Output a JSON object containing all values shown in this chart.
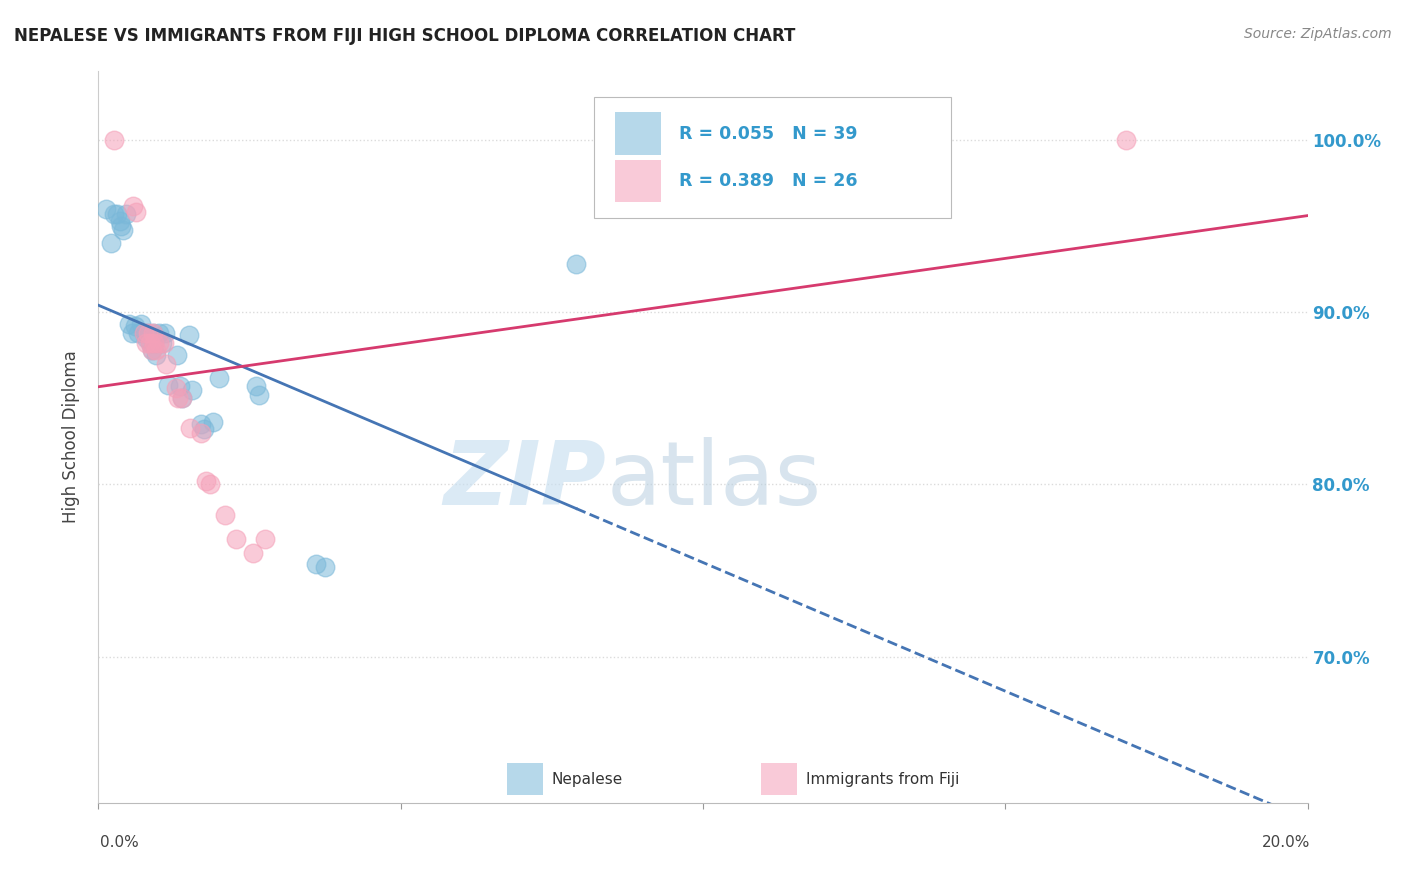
{
  "title": "NEPALESE VS IMMIGRANTS FROM FIJI HIGH SCHOOL DIPLOMA CORRELATION CHART",
  "source": "Source: ZipAtlas.com",
  "ylabel": "High School Diploma",
  "legend_label_blue": "Nepalese",
  "legend_label_pink": "Immigrants from Fiji",
  "R_blue": 0.055,
  "N_blue": 39,
  "R_pink": 0.389,
  "N_pink": 26,
  "xlim": [
    0.0,
    0.2
  ],
  "ylim": [
    0.615,
    1.04
  ],
  "yticks": [
    0.7,
    0.8,
    0.9,
    1.0
  ],
  "right_ytick_labels": [
    "70.0%",
    "80.0%",
    "90.0%",
    "100.0%"
  ],
  "background_color": "#ffffff",
  "blue_color": "#7ab8d9",
  "pink_color": "#f5a0b8",
  "blue_line_color": "#4575b4",
  "pink_line_color": "#d63a6e",
  "watermark_zip": "ZIP",
  "watermark_atlas": "atlas",
  "blue_points": [
    [
      0.0012,
      0.96
    ],
    [
      0.002,
      0.94
    ],
    [
      0.0025,
      0.957
    ],
    [
      0.003,
      0.957
    ],
    [
      0.0035,
      0.953
    ],
    [
      0.0038,
      0.95
    ],
    [
      0.004,
      0.948
    ],
    [
      0.0045,
      0.957
    ],
    [
      0.005,
      0.893
    ],
    [
      0.0055,
      0.888
    ],
    [
      0.006,
      0.892
    ],
    [
      0.0065,
      0.888
    ],
    [
      0.007,
      0.893
    ],
    [
      0.0075,
      0.888
    ],
    [
      0.0078,
      0.885
    ],
    [
      0.0082,
      0.888
    ],
    [
      0.0085,
      0.882
    ],
    [
      0.0088,
      0.878
    ],
    [
      0.009,
      0.888
    ],
    [
      0.0092,
      0.882
    ],
    [
      0.0095,
      0.875
    ],
    [
      0.01,
      0.888
    ],
    [
      0.0105,
      0.882
    ],
    [
      0.011,
      0.888
    ],
    [
      0.0115,
      0.858
    ],
    [
      0.013,
      0.875
    ],
    [
      0.0135,
      0.857
    ],
    [
      0.0138,
      0.85
    ],
    [
      0.015,
      0.887
    ],
    [
      0.0155,
      0.855
    ],
    [
      0.017,
      0.835
    ],
    [
      0.0175,
      0.832
    ],
    [
      0.019,
      0.836
    ],
    [
      0.02,
      0.862
    ],
    [
      0.026,
      0.857
    ],
    [
      0.0265,
      0.852
    ],
    [
      0.036,
      0.754
    ],
    [
      0.0375,
      0.752
    ],
    [
      0.079,
      0.928
    ]
  ],
  "pink_points": [
    [
      0.0025,
      1.0
    ],
    [
      0.0058,
      0.962
    ],
    [
      0.0062,
      0.958
    ],
    [
      0.0075,
      0.888
    ],
    [
      0.0078,
      0.882
    ],
    [
      0.0082,
      0.888
    ],
    [
      0.0085,
      0.882
    ],
    [
      0.0088,
      0.878
    ],
    [
      0.009,
      0.888
    ],
    [
      0.0092,
      0.882
    ],
    [
      0.0095,
      0.878
    ],
    [
      0.01,
      0.882
    ],
    [
      0.0108,
      0.882
    ],
    [
      0.0112,
      0.87
    ],
    [
      0.0128,
      0.856
    ],
    [
      0.0132,
      0.85
    ],
    [
      0.0138,
      0.85
    ],
    [
      0.0152,
      0.833
    ],
    [
      0.017,
      0.83
    ],
    [
      0.0178,
      0.802
    ],
    [
      0.0185,
      0.8
    ],
    [
      0.021,
      0.782
    ],
    [
      0.0228,
      0.768
    ],
    [
      0.0255,
      0.76
    ],
    [
      0.0275,
      0.768
    ],
    [
      0.17,
      1.0
    ]
  ]
}
